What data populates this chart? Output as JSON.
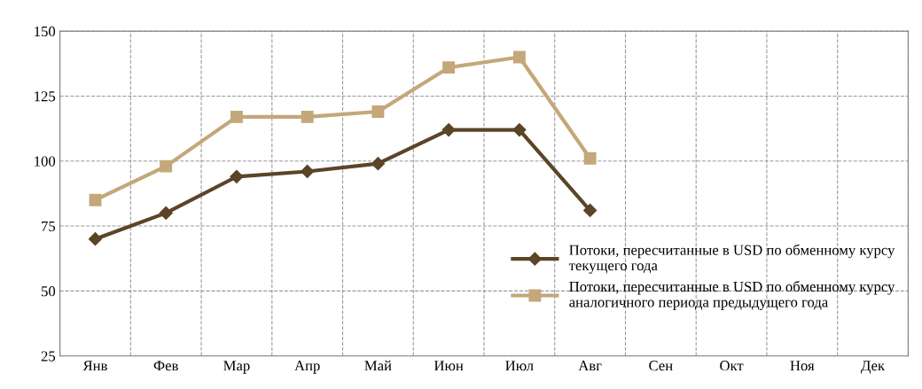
{
  "chart_data": {
    "type": "line",
    "categories": [
      "Янв",
      "Фев",
      "Мар",
      "Апр",
      "Май",
      "Июн",
      "Июл",
      "Авг",
      "Сен",
      "Окт",
      "Ноя",
      "Дек"
    ],
    "series": [
      {
        "name": "Потоки, пересчитанные в USD по обменному курсу\nтекущего года",
        "color": "#5c4427",
        "marker": "diamond",
        "values": [
          70,
          80,
          94,
          96,
          99,
          112,
          112,
          81,
          null,
          null,
          null,
          null
        ]
      },
      {
        "name": "Потоки, пересчитанные в USD по обменному курсу\nаналогичного периода предыдущего года",
        "color": "#c4a77a",
        "marker": "square",
        "values": [
          85,
          98,
          117,
          117,
          119,
          136,
          140,
          101,
          null,
          null,
          null,
          null
        ]
      }
    ],
    "ylim": [
      25,
      150
    ],
    "yticks": [
      25,
      50,
      75,
      100,
      125,
      150
    ],
    "grid": true,
    "legend": "bottom right",
    "line_style": "solid"
  }
}
